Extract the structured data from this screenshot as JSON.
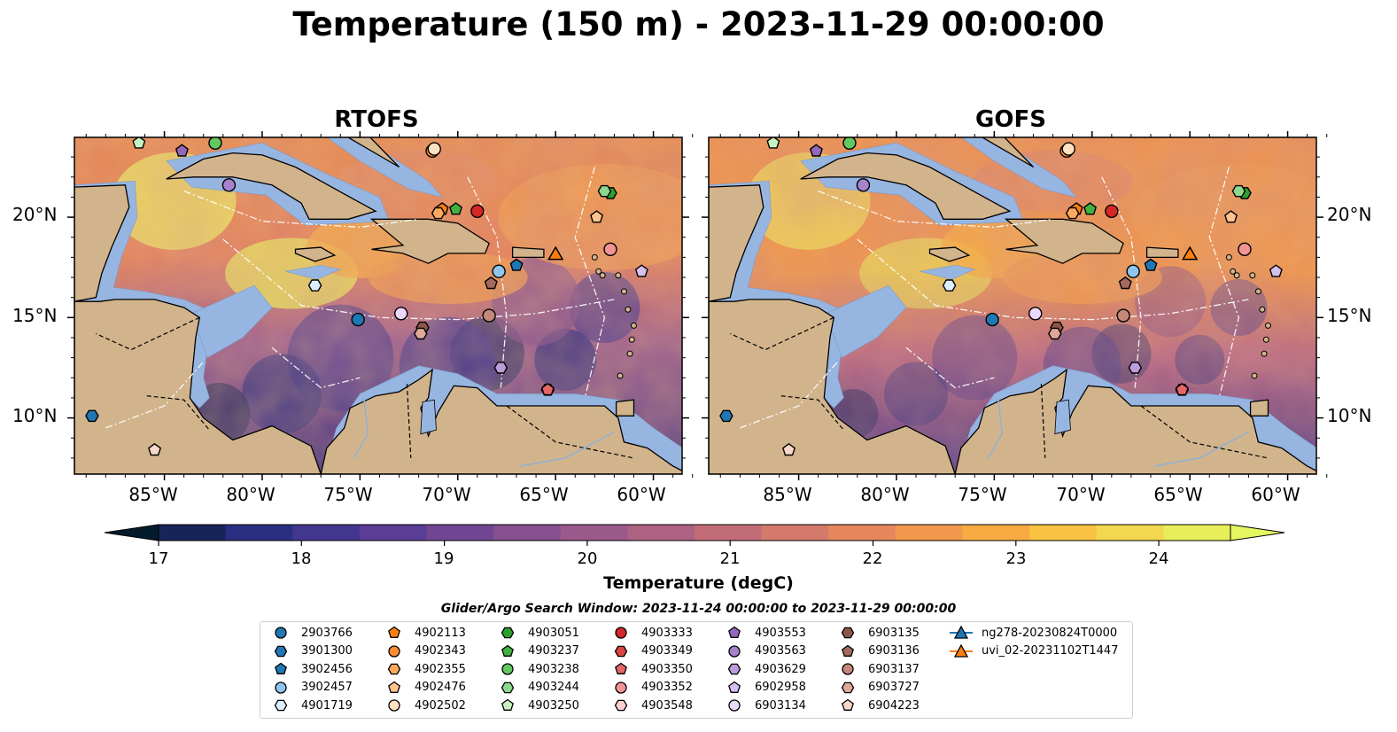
{
  "title": "Temperature (150 m) - 2023-11-29 00:00:00",
  "panels": [
    {
      "title": "RTOFS"
    },
    {
      "title": "GOFS"
    }
  ],
  "latitude_labels": [
    "20°N",
    "15°N",
    "10°N"
  ],
  "longitude_labels": [
    "85°W",
    "80°W",
    "75°W",
    "70°W",
    "65°W",
    "60°W"
  ],
  "colorbar": {
    "label": "Temperature (degC)",
    "ticks": [
      "17",
      "18",
      "19",
      "20",
      "21",
      "22",
      "23",
      "24"
    ],
    "colors": [
      "#041b2d",
      "#17245a",
      "#2a2e80",
      "#43368f",
      "#5a3d94",
      "#704693",
      "#86508f",
      "#9b598b",
      "#ae6283",
      "#c26c78",
      "#d47a6b",
      "#e4885c",
      "#f0984c",
      "#f7ab42",
      "#f9c243",
      "#f2d84e",
      "#e8ee58",
      "#e4f760"
    ]
  },
  "map_colors": {
    "land": "#d2b48c",
    "shallow": "#97b5e1"
  },
  "search_window": "Glider/Argo Search Window: 2023-11-24 00:00:00 to 2023-11-29 00:00:00",
  "legend": [
    {
      "label": "2903766",
      "marker": "circle",
      "color": "#1f77b4"
    },
    {
      "label": "3901300",
      "marker": "hexagon",
      "color": "#1f77b4"
    },
    {
      "label": "3902456",
      "marker": "pentagon",
      "color": "#1f77b4"
    },
    {
      "label": "3902457",
      "marker": "circle",
      "color": "#8ec6ee"
    },
    {
      "label": "4901719",
      "marker": "hexagon",
      "color": "#dcefff"
    },
    {
      "label": "4902113",
      "marker": "pentagon",
      "color": "#ff7f0e"
    },
    {
      "label": "4902343",
      "marker": "circle",
      "color": "#ff8c2e"
    },
    {
      "label": "4902355",
      "marker": "hexagon",
      "color": "#ffa95e"
    },
    {
      "label": "4902476",
      "marker": "pentagon",
      "color": "#ffc48e"
    },
    {
      "label": "4902502",
      "marker": "circle",
      "color": "#ffe2c2"
    },
    {
      "label": "4903051",
      "marker": "hexagon",
      "color": "#2ca02c"
    },
    {
      "label": "4903237",
      "marker": "pentagon",
      "color": "#40b040"
    },
    {
      "label": "4903238",
      "marker": "circle",
      "color": "#62c862"
    },
    {
      "label": "4903244",
      "marker": "hexagon",
      "color": "#8ed88e"
    },
    {
      "label": "4903250",
      "marker": "pentagon",
      "color": "#c8f2c0"
    },
    {
      "label": "4903333",
      "marker": "circle",
      "color": "#d62728"
    },
    {
      "label": "4903349",
      "marker": "hexagon",
      "color": "#dd4344"
    },
    {
      "label": "4903350",
      "marker": "pentagon",
      "color": "#e46666"
    },
    {
      "label": "4903352",
      "marker": "circle",
      "color": "#f29494"
    },
    {
      "label": "4903548",
      "marker": "hexagon",
      "color": "#ffd0d0"
    },
    {
      "label": "4903553",
      "marker": "pentagon",
      "color": "#9467bd"
    },
    {
      "label": "4903563",
      "marker": "circle",
      "color": "#a882cc"
    },
    {
      "label": "4903629",
      "marker": "hexagon",
      "color": "#bc9ddb"
    },
    {
      "label": "6902958",
      "marker": "pentagon",
      "color": "#d4c0ee"
    },
    {
      "label": "6903134",
      "marker": "circle",
      "color": "#ead9fb"
    },
    {
      "label": "6903135",
      "marker": "hexagon",
      "color": "#8c564b"
    },
    {
      "label": "6903136",
      "marker": "pentagon",
      "color": "#a36a5d"
    },
    {
      "label": "6903137",
      "marker": "circle",
      "color": "#c4877a"
    },
    {
      "label": "6903727",
      "marker": "hexagon",
      "color": "#e0a898"
    },
    {
      "label": "6904223",
      "marker": "pentagon",
      "color": "#f8d8cc"
    },
    {
      "label": "ng278-20230824T0000",
      "marker": "triangle-line",
      "color": "#1f77b4"
    },
    {
      "label": "uvi_02-20231102T1447",
      "marker": "triangle-line",
      "color": "#ff7f0e"
    }
  ]
}
